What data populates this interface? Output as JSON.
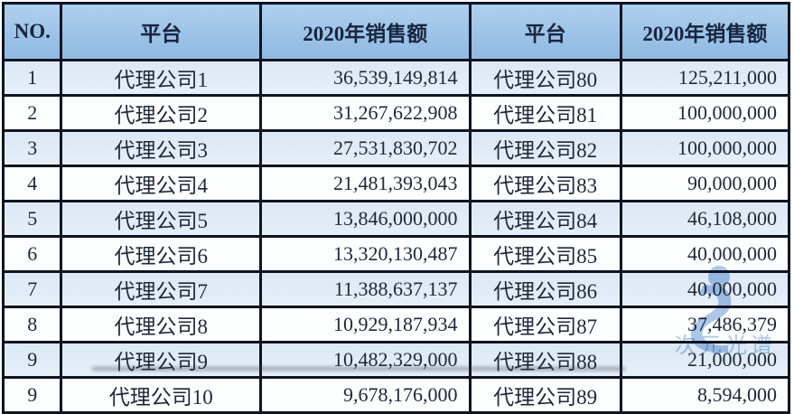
{
  "table": {
    "headers": [
      "NO.",
      "平台",
      "2020年销售额",
      "平台",
      "2020年销售额"
    ],
    "rows": [
      [
        "1",
        "代理公司1",
        "36,539,149,814",
        "代理公司80",
        "125,211,000"
      ],
      [
        "2",
        "代理公司2",
        "31,267,622,908",
        "代理公司81",
        "100,000,000"
      ],
      [
        "3",
        "代理公司3",
        "27,531,830,702",
        "代理公司82",
        "100,000,000"
      ],
      [
        "4",
        "代理公司4",
        "21,481,393,043",
        "代理公司83",
        "90,000,000"
      ],
      [
        "5",
        "代理公司5",
        "13,846,000,000",
        "代理公司84",
        "46,108,000"
      ],
      [
        "6",
        "代理公司6",
        "13,320,130,487",
        "代理公司85",
        "40,000,000"
      ],
      [
        "7",
        "代理公司7",
        "11,388,637,137",
        "代理公司86",
        "40,000,000"
      ],
      [
        "8",
        "代理公司8",
        "10,929,187,934",
        "代理公司87",
        "37,486,379"
      ],
      [
        "9",
        "代理公司9",
        "10,482,329,000",
        "代理公司88",
        "21,000,000"
      ],
      [
        "9",
        "代理公司10",
        "9,678,176,000",
        "代理公司89",
        "8,594,000"
      ]
    ]
  },
  "watermark": {
    "text": "次元光谱"
  },
  "colors": {
    "header_bg": "#9cc3e7",
    "row_alt_bg": "#deeaf6",
    "row_bg": "#fdfefe",
    "border": "#0d1422",
    "text": "#1e2838",
    "watermark": "#6b9bd6"
  }
}
